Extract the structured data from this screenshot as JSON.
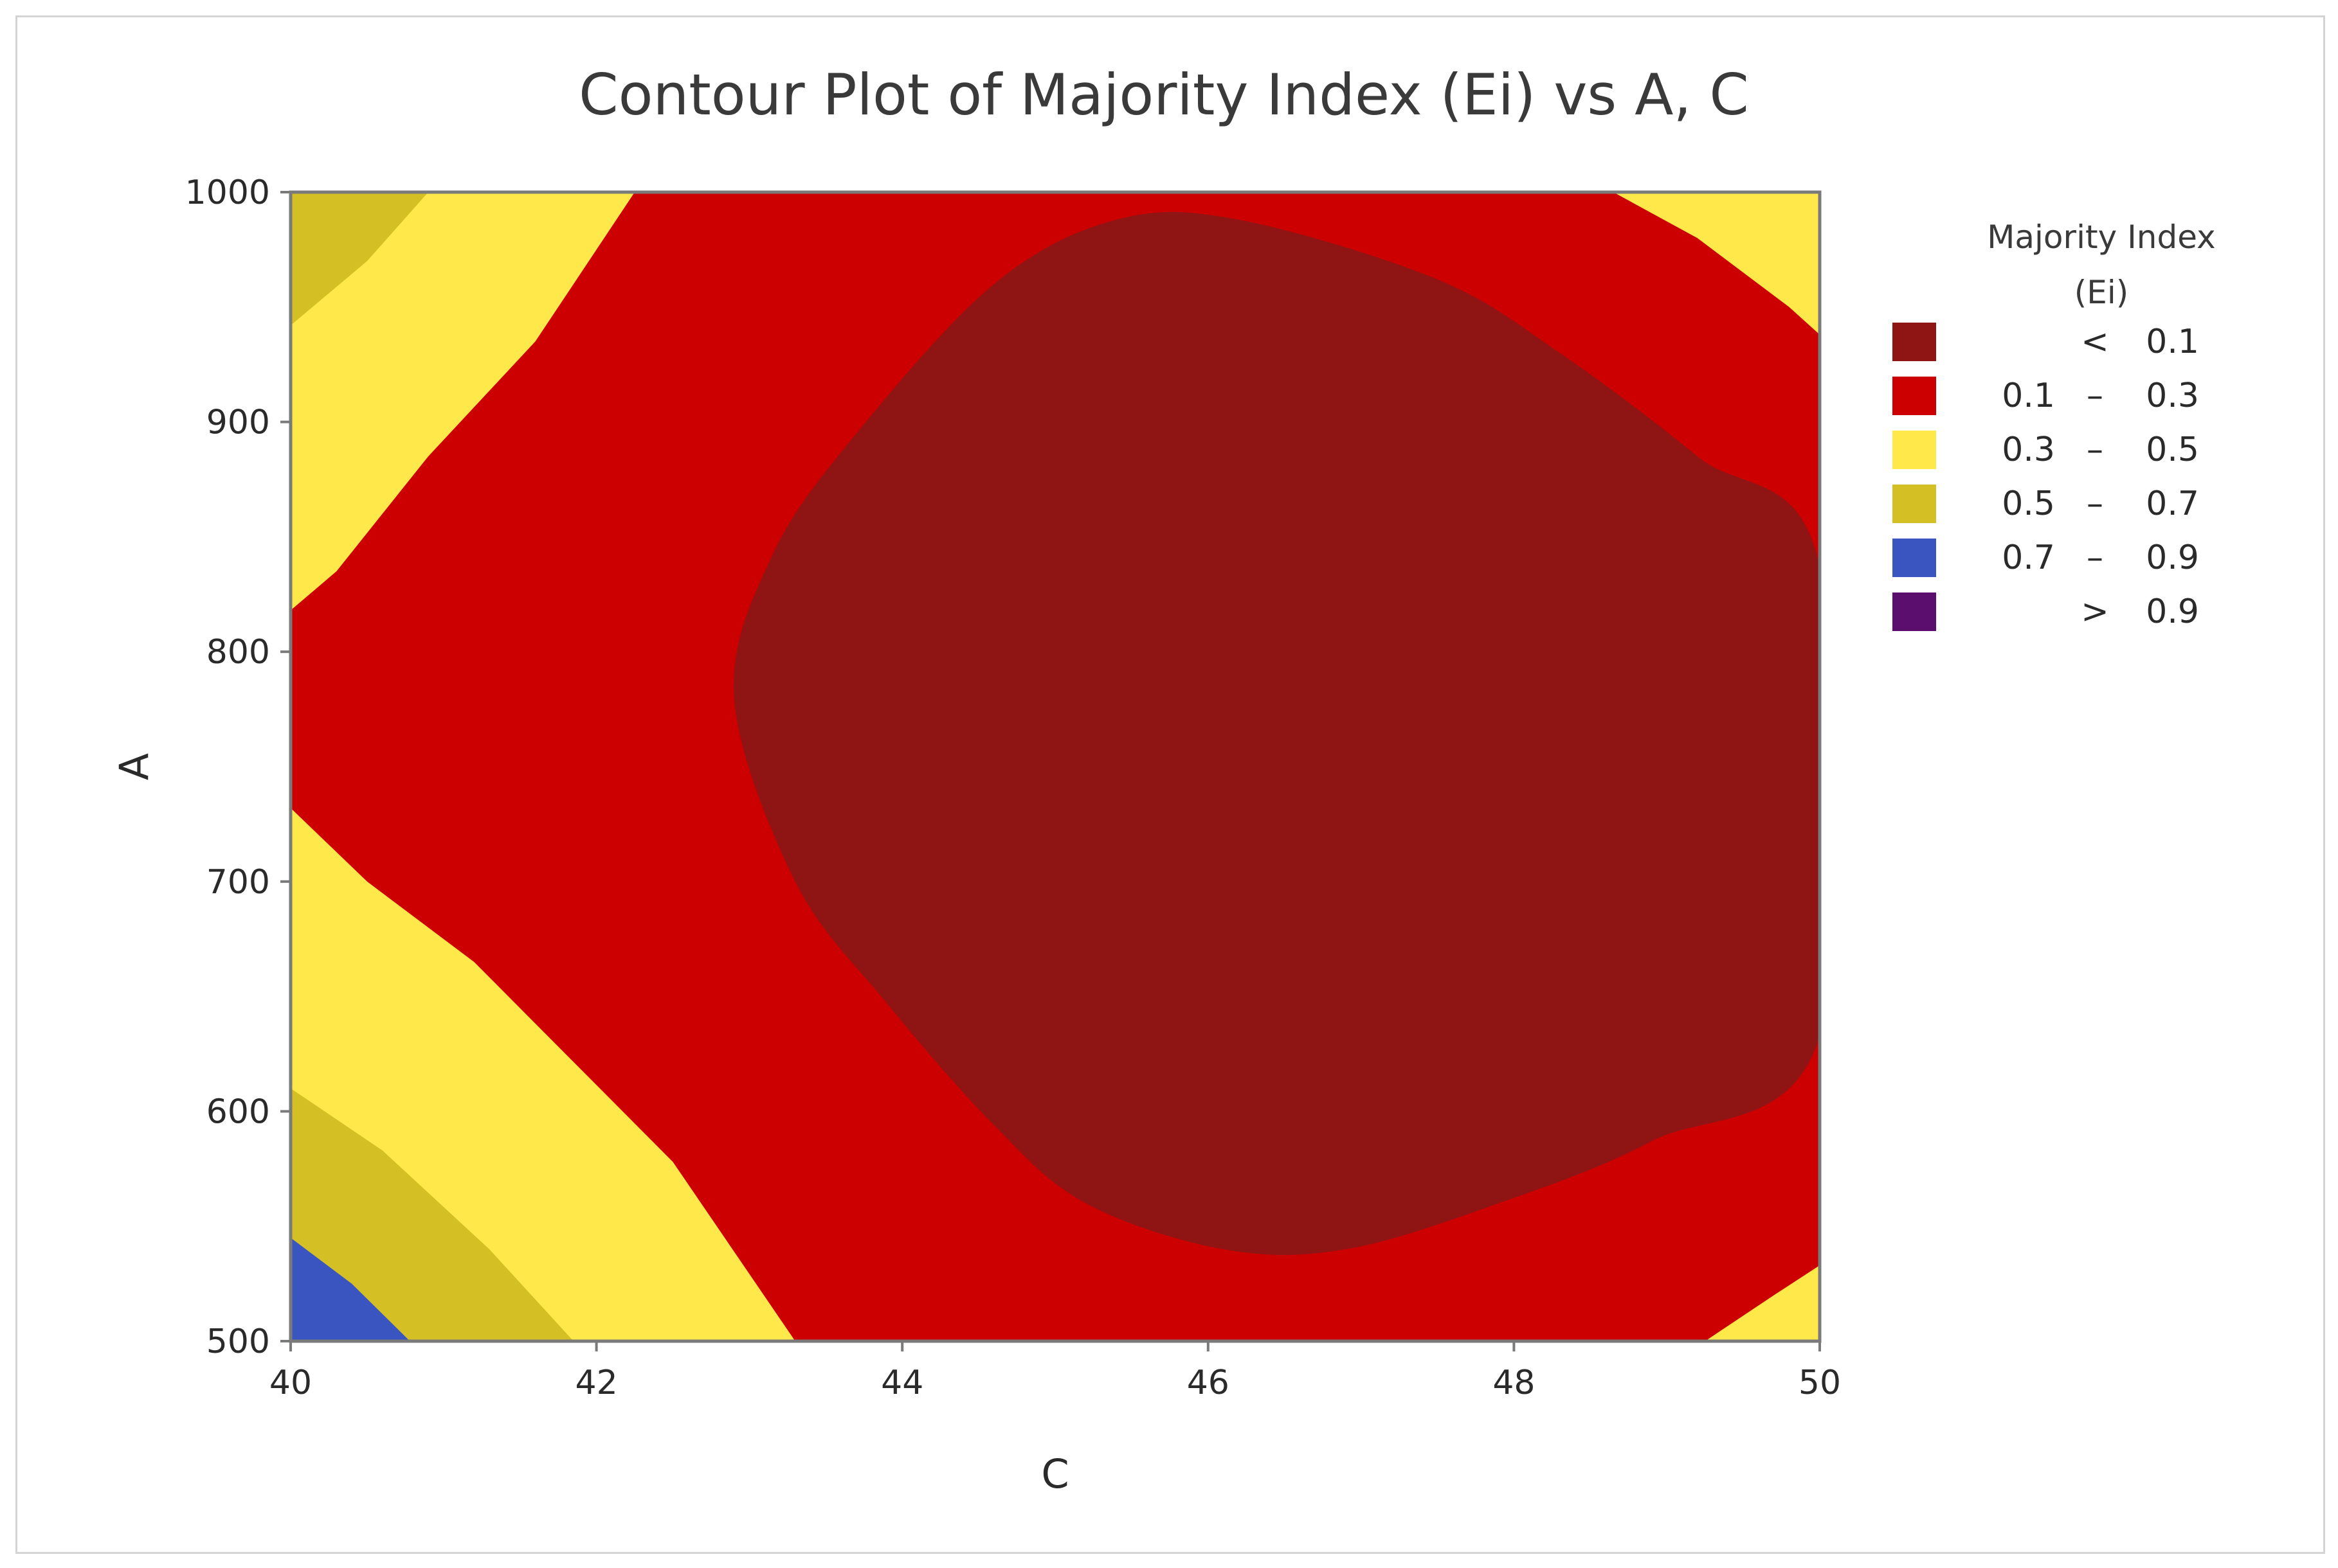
{
  "chart_data": {
    "type": "contour",
    "title": "Contour Plot of Majority Index (Ei) vs A, C",
    "xlabel": "C",
    "ylabel": "A",
    "xlim": [
      40,
      50
    ],
    "ylim": [
      500,
      1000
    ],
    "x_ticks": [
      "40",
      "42",
      "44",
      "46",
      "48",
      "50"
    ],
    "y_ticks": [
      "500",
      "600",
      "700",
      "800",
      "900",
      "1000"
    ],
    "grid": false,
    "legend": {
      "title_line1": "Majority Index",
      "title_line2": "(Ei)",
      "position": "right",
      "items": [
        {
          "lo": "",
          "sep": "<",
          "hi": "0.1",
          "color": "#8f1414"
        },
        {
          "lo": "0.1",
          "sep": "–",
          "hi": "0.3",
          "color": "#cc0000"
        },
        {
          "lo": "0.3",
          "sep": "–",
          "hi": "0.5",
          "color": "#ffe94a"
        },
        {
          "lo": "0.5",
          "sep": "–",
          "hi": "0.7",
          "color": "#d4bf24"
        },
        {
          "lo": "0.7",
          "sep": "–",
          "hi": "0.9",
          "color": "#3b55c0"
        },
        {
          "lo": "",
          "sep": ">",
          "hi": "0.9",
          "color": "#5c0e6e"
        }
      ]
    },
    "regions": [
      {
        "level": "0.1 – 0.3",
        "color": "#cc0000",
        "points": [
          [
            40,
            500
          ],
          [
            50,
            500
          ],
          [
            50,
            1000
          ],
          [
            40,
            1000
          ]
        ]
      },
      {
        "level": "0.3 – 0.5",
        "color": "#ffe94a",
        "points": [
          [
            40,
            500
          ],
          [
            43.3,
            500
          ],
          [
            42.5,
            578
          ],
          [
            41.2,
            665
          ],
          [
            40.5,
            700
          ],
          [
            40,
            732
          ]
        ]
      },
      {
        "level": "0.3 – 0.5",
        "color": "#ffe94a",
        "points": [
          [
            40,
            1000
          ],
          [
            42.25,
            1000
          ],
          [
            41.6,
            935
          ],
          [
            40.9,
            885
          ],
          [
            40.3,
            835
          ],
          [
            40,
            818
          ]
        ]
      },
      {
        "level": "0.3 – 0.5",
        "color": "#ffe94a",
        "points": [
          [
            48.65,
            1000
          ],
          [
            50,
            1000
          ],
          [
            50,
            938
          ],
          [
            49.8,
            950
          ],
          [
            49.2,
            980
          ]
        ]
      },
      {
        "level": "0.3 – 0.5",
        "color": "#ffe94a",
        "points": [
          [
            49.25,
            500
          ],
          [
            50,
            500
          ],
          [
            50,
            533
          ],
          [
            49.7,
            520
          ]
        ]
      },
      {
        "level": "0.5 – 0.7",
        "color": "#d4bf24",
        "points": [
          [
            40,
            500
          ],
          [
            41.85,
            500
          ],
          [
            41.3,
            540
          ],
          [
            40.6,
            583
          ],
          [
            40,
            610
          ]
        ]
      },
      {
        "level": "0.5 – 0.7",
        "color": "#d4bf24",
        "points": [
          [
            40,
            1000
          ],
          [
            40.9,
            1000
          ],
          [
            40.5,
            970
          ],
          [
            40,
            942
          ]
        ]
      },
      {
        "level": "0.7 – 0.9",
        "color": "#3b55c0",
        "points": [
          [
            40,
            500
          ],
          [
            40.78,
            500
          ],
          [
            40.4,
            525
          ],
          [
            40,
            545
          ]
        ]
      },
      {
        "level": "< 0.1",
        "color": "#8f1414",
        "points": [
          [
            45.4,
            988
          ],
          [
            44.6,
            960
          ],
          [
            43.7,
            895
          ],
          [
            43.15,
            842
          ],
          [
            42.9,
            780
          ],
          [
            43.3,
            700
          ],
          [
            43.9,
            647
          ],
          [
            44.6,
            594
          ],
          [
            45.2,
            560
          ],
          [
            46.1,
            540
          ],
          [
            46.9,
            540
          ],
          [
            47.9,
            560
          ],
          [
            48.9,
            587
          ],
          [
            50,
            633
          ],
          [
            50,
            837
          ],
          [
            49.2,
            885
          ],
          [
            48.3,
            930
          ],
          [
            47.5,
            962
          ],
          [
            46.2,
            988
          ]
        ]
      }
    ]
  }
}
